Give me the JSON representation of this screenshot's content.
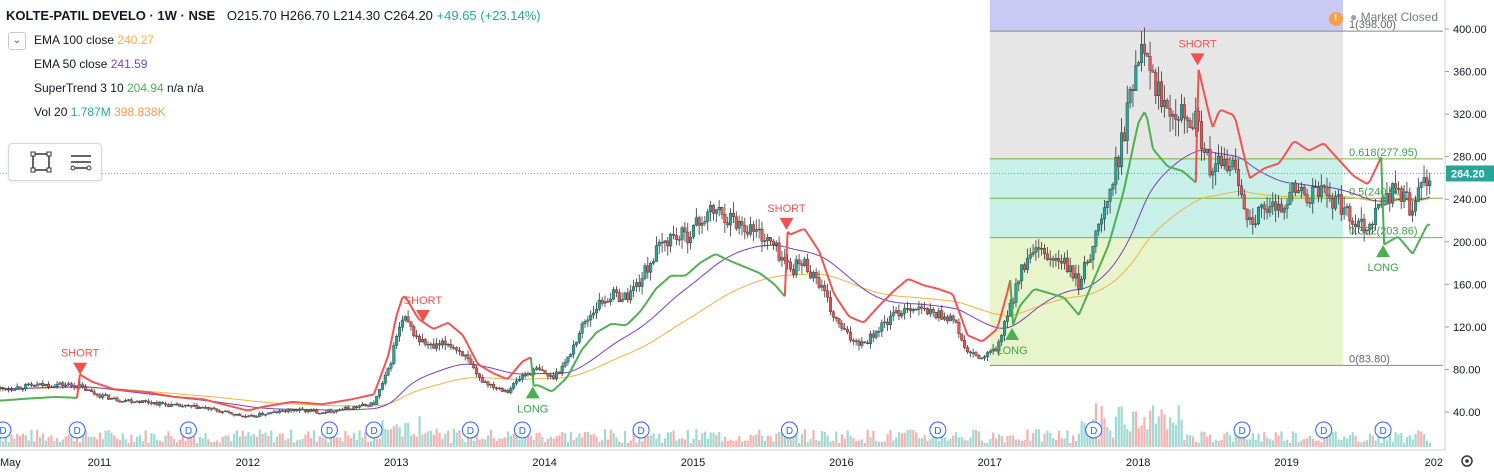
{
  "header": {
    "symbol": "KOLTE-PATIL DEVELO · 1W · NSE",
    "open": "O215.70",
    "high": "H266.70",
    "low": "L214.30",
    "close": "C264.20",
    "change": "+49.65 (+23.14%)",
    "market_status": "Market Closed"
  },
  "indicators": [
    {
      "name": "EMA 100 close",
      "value": "240.27",
      "color": "#f5b041"
    },
    {
      "name": "EMA 50 close",
      "value": "241.59",
      "color": "#7b3fbf"
    },
    {
      "name": "SuperTrend 3 10",
      "value": "204.94",
      "extra": "n/a n/a",
      "color": "#4caf50"
    },
    {
      "name": "Vol 20",
      "value": "1.787M",
      "value2": "398.838K",
      "color": "#26a69a",
      "color2": "#f2994a"
    }
  ],
  "chart_data": {
    "type": "candlestick",
    "price_axis_ticks": [
      "400.00",
      "360.00",
      "320.00",
      "280.00",
      "240.00",
      "200.00",
      "160.00",
      "120.00",
      "80.00",
      "40.00"
    ],
    "ylim": [
      0,
      420
    ],
    "time_axis_labels": [
      "May",
      "2011",
      "2012",
      "2013",
      "2014",
      "2015",
      "2016",
      "2017",
      "2018",
      "2019",
      "202"
    ],
    "last_price": "264.20",
    "close_series": [
      [
        2010.35,
        62
      ],
      [
        2010.5,
        64
      ],
      [
        2010.7,
        66
      ],
      [
        2010.85,
        65
      ],
      [
        2010.95,
        58
      ],
      [
        2011.1,
        52
      ],
      [
        2011.3,
        50
      ],
      [
        2011.5,
        46
      ],
      [
        2011.7,
        44
      ],
      [
        2011.9,
        38
      ],
      [
        2012.0,
        35
      ],
      [
        2012.1,
        38
      ],
      [
        2012.3,
        42
      ],
      [
        2012.5,
        40
      ],
      [
        2012.7,
        44
      ],
      [
        2012.85,
        48
      ],
      [
        2012.95,
        80
      ],
      [
        2013.0,
        110
      ],
      [
        2013.05,
        128
      ],
      [
        2013.15,
        108
      ],
      [
        2013.25,
        100
      ],
      [
        2013.35,
        105
      ],
      [
        2013.45,
        95
      ],
      [
        2013.55,
        72
      ],
      [
        2013.65,
        65
      ],
      [
        2013.75,
        60
      ],
      [
        2013.85,
        74
      ],
      [
        2013.95,
        80
      ],
      [
        2014.05,
        72
      ],
      [
        2014.15,
        88
      ],
      [
        2014.25,
        120
      ],
      [
        2014.35,
        140
      ],
      [
        2014.45,
        150
      ],
      [
        2014.55,
        148
      ],
      [
        2014.65,
        165
      ],
      [
        2014.75,
        190
      ],
      [
        2014.85,
        205
      ],
      [
        2014.95,
        205
      ],
      [
        2015.05,
        220
      ],
      [
        2015.15,
        230
      ],
      [
        2015.25,
        222
      ],
      [
        2015.35,
        215
      ],
      [
        2015.45,
        208
      ],
      [
        2015.55,
        195
      ],
      [
        2015.65,
        175
      ],
      [
        2015.75,
        180
      ],
      [
        2015.85,
        162
      ],
      [
        2015.95,
        128
      ],
      [
        2016.05,
        110
      ],
      [
        2016.15,
        105
      ],
      [
        2016.25,
        118
      ],
      [
        2016.35,
        130
      ],
      [
        2016.45,
        140
      ],
      [
        2016.55,
        135
      ],
      [
        2016.65,
        132
      ],
      [
        2016.75,
        128
      ],
      [
        2016.85,
        95
      ],
      [
        2016.95,
        90
      ],
      [
        2017.05,
        100
      ],
      [
        2017.12,
        130
      ],
      [
        2017.2,
        170
      ],
      [
        2017.3,
        190
      ],
      [
        2017.4,
        185
      ],
      [
        2017.5,
        180
      ],
      [
        2017.6,
        160
      ],
      [
        2017.7,
        200
      ],
      [
        2017.8,
        240
      ],
      [
        2017.9,
        300
      ],
      [
        2018.0,
        380
      ],
      [
        2018.05,
        395
      ],
      [
        2018.1,
        350
      ],
      [
        2018.2,
        330
      ],
      [
        2018.3,
        325
      ],
      [
        2018.4,
        310
      ],
      [
        2018.5,
        260
      ],
      [
        2018.55,
        275
      ],
      [
        2018.65,
        270
      ],
      [
        2018.75,
        220
      ],
      [
        2018.85,
        228
      ],
      [
        2018.95,
        232
      ],
      [
        2019.05,
        250
      ],
      [
        2019.15,
        242
      ],
      [
        2019.25,
        248
      ],
      [
        2019.35,
        235
      ],
      [
        2019.45,
        222
      ],
      [
        2019.55,
        215
      ],
      [
        2019.65,
        240
      ],
      [
        2019.75,
        250
      ],
      [
        2019.85,
        230
      ],
      [
        2019.95,
        264
      ]
    ],
    "supertrend_signals": [
      {
        "label": "SHORT",
        "x": 2010.87,
        "type": "short"
      },
      {
        "label": "SHORT",
        "x": 2013.18,
        "type": "short"
      },
      {
        "label": "LONG",
        "x": 2013.92,
        "type": "long"
      },
      {
        "label": "SHORT",
        "x": 2015.63,
        "type": "short"
      },
      {
        "label": "LONG",
        "x": 2017.15,
        "type": "long"
      },
      {
        "label": "SHORT",
        "x": 2018.4,
        "type": "short"
      },
      {
        "label": "LONG",
        "x": 2019.65,
        "type": "long"
      }
    ],
    "fibonacci": [
      {
        "label": "1(398.00)",
        "price": 398.0
      },
      {
        "label": "0.618(277.95)",
        "price": 277.95
      },
      {
        "label": "0.5(240.90)",
        "price": 240.9
      },
      {
        "label": "0.382(203.86)",
        "price": 203.86
      },
      {
        "label": "0(83.80)",
        "price": 83.8
      }
    ],
    "dividend_marker": "D",
    "dividend_dates": [
      2010.35,
      2010.85,
      2011.6,
      2012.55,
      2012.85,
      2013.5,
      2013.85,
      2014.65,
      2015.65,
      2016.65,
      2017.7,
      2018.7,
      2019.25,
      2019.65
    ],
    "colors": {
      "up": "#26a69a",
      "down": "#ef5350",
      "fib_top": "#b2b2f0",
      "fib_gray": "#e6e6e6",
      "fib_cyan": "#c8f0e8",
      "fib_green": "#e8f5cc",
      "supertrend_up": "#4caf50",
      "supertrend_down": "#ef5350",
      "ema100": "#f5b041",
      "ema50": "#7b3fbf"
    }
  }
}
